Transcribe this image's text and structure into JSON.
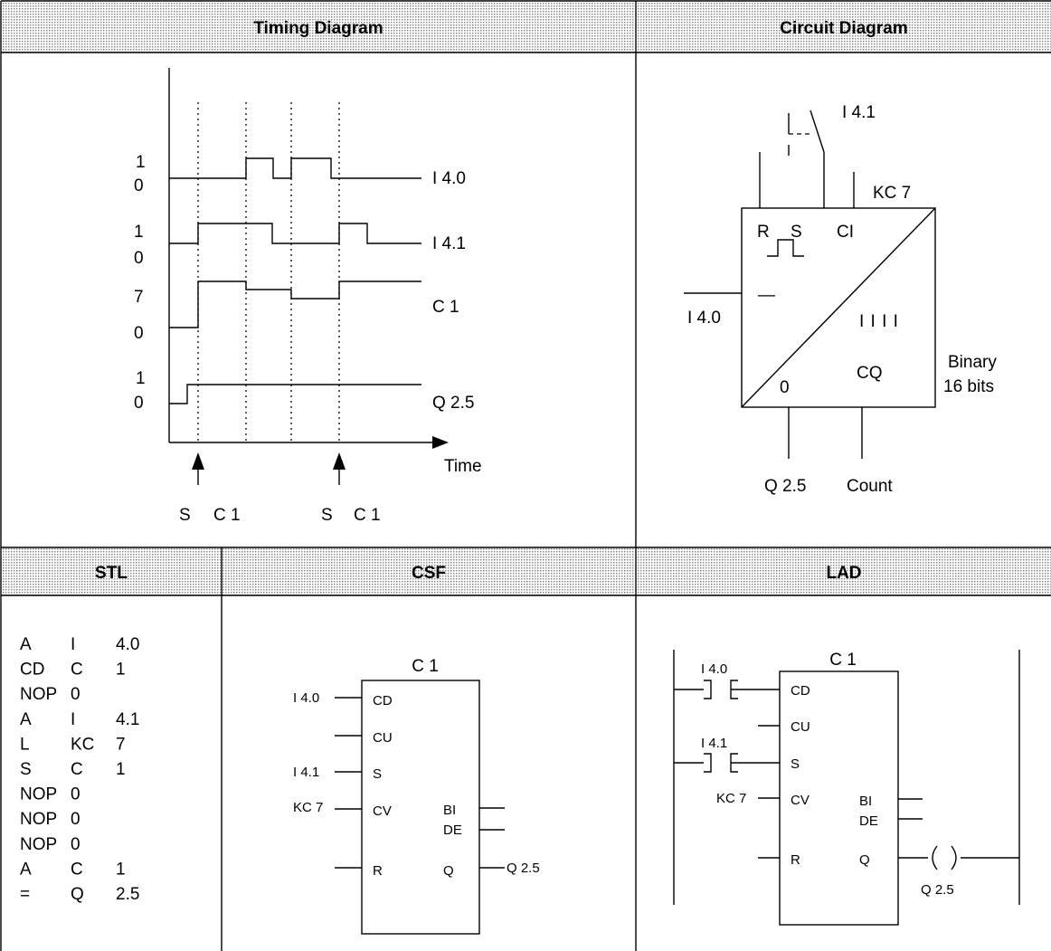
{
  "headers": {
    "timing": "Timing Diagram",
    "circuit": "Circuit Diagram",
    "stl": "STL",
    "csf": "CSF",
    "lad": "LAD"
  },
  "timing": {
    "signals": [
      {
        "high": "1",
        "low": "0",
        "name": "I 4.0"
      },
      {
        "high": "1",
        "low": "0",
        "name": "I 4.1"
      },
      {
        "high": "7",
        "low": "0",
        "name": "C 1"
      },
      {
        "high": "1",
        "low": "0",
        "name": "Q 2.5"
      }
    ],
    "time_label": "Time",
    "markers": [
      {
        "s": "S",
        "c": "C 1"
      },
      {
        "s": "S",
        "c": "C 1"
      }
    ]
  },
  "circuit": {
    "switch_label": "I 4.1",
    "kc_label": "KC 7",
    "reset_label": "R",
    "set_label": "S",
    "ci_label": "CI",
    "down_input_label": "I 4.0",
    "minus_symbol": "—",
    "count_symbol": "I I I I",
    "zero_label": "0",
    "cq_label": "CQ",
    "binary_label_1": "Binary",
    "binary_label_2": "16 bits",
    "q_output_label": "Q 2.5",
    "count_output_label": "Count"
  },
  "stl": {
    "rows": [
      [
        "A",
        "I",
        "4.0"
      ],
      [
        "CD",
        "C",
        "1"
      ],
      [
        "NOP",
        "0",
        ""
      ],
      [
        "A",
        "I",
        "4.1"
      ],
      [
        "L",
        "KC",
        "7"
      ],
      [
        "S",
        "C",
        "1"
      ],
      [
        "NOP",
        "0",
        ""
      ],
      [
        "NOP",
        "0",
        ""
      ],
      [
        "NOP",
        "0",
        ""
      ],
      [
        "A",
        "C",
        "1"
      ],
      [
        "=",
        "Q",
        "2.5"
      ]
    ]
  },
  "csf": {
    "block": "C 1",
    "pins_left": [
      "CD",
      "CU",
      "S",
      "CV",
      "R"
    ],
    "pins_right": [
      "BI",
      "DE",
      "Q"
    ],
    "in_cd": "I 4.0",
    "in_s": "I 4.1",
    "in_cv": "KC 7",
    "out_q": "Q 2.5"
  },
  "lad": {
    "block": "C 1",
    "contact1": "I 4.0",
    "contact2": "I 4.1",
    "kc": "KC 7",
    "pins_left": [
      "CD",
      "CU",
      "S",
      "CV",
      "R"
    ],
    "pins_right": [
      "BI",
      "DE",
      "Q"
    ],
    "coil": "Q 2.5"
  }
}
